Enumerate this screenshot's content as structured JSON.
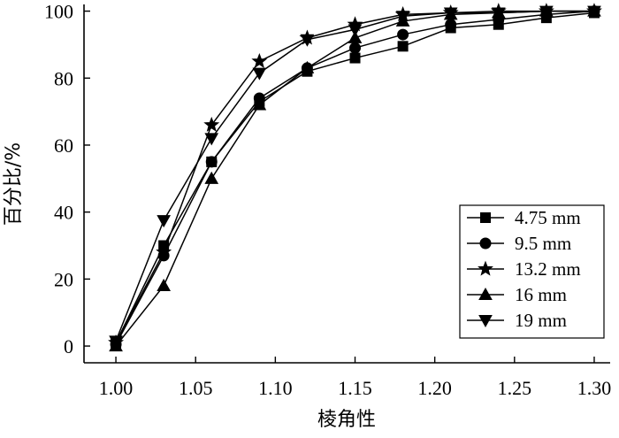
{
  "chart_data": {
    "type": "line",
    "xlabel": "棱角性",
    "ylabel": "百分比/%",
    "xlim": [
      0.98,
      1.31
    ],
    "ylim": [
      -5,
      102
    ],
    "x_ticks": [
      1.0,
      1.05,
      1.1,
      1.15,
      1.2,
      1.25,
      1.3
    ],
    "x_tick_labels": [
      "1.00",
      "1.05",
      "1.10",
      "1.15",
      "1.20",
      "1.25",
      "1.30"
    ],
    "y_ticks": [
      0,
      20,
      40,
      60,
      80,
      100
    ],
    "y_tick_labels": [
      "0",
      "20",
      "40",
      "60",
      "80",
      "100"
    ],
    "legend_position": "right",
    "series": [
      {
        "name": "4.75 mm",
        "marker": "square",
        "x": [
          1.0,
          1.03,
          1.06,
          1.09,
          1.12,
          1.15,
          1.18,
          1.21,
          1.24,
          1.27,
          1.3
        ],
        "values": [
          1,
          30,
          55,
          73,
          82,
          86,
          89.5,
          95,
          96,
          98,
          99.5
        ]
      },
      {
        "name": "9.5 mm",
        "marker": "circle",
        "x": [
          1.0,
          1.03,
          1.06,
          1.09,
          1.12,
          1.15,
          1.18,
          1.21,
          1.24,
          1.27,
          1.3
        ],
        "values": [
          0.5,
          27,
          55,
          74,
          83,
          89,
          93,
          96,
          97.5,
          99,
          100
        ]
      },
      {
        "name": "13.2 mm",
        "marker": "star",
        "x": [
          1.0,
          1.03,
          1.06,
          1.09,
          1.12,
          1.15,
          1.18,
          1.21,
          1.24,
          1.27,
          1.3
        ],
        "values": [
          1,
          28,
          66,
          85,
          92,
          96,
          99,
          99.5,
          100,
          100,
          100
        ]
      },
      {
        "name": "16 mm",
        "marker": "triangle-up",
        "x": [
          1.0,
          1.03,
          1.06,
          1.09,
          1.12,
          1.15,
          1.18,
          1.21,
          1.24,
          1.27,
          1.3
        ],
        "values": [
          0,
          18,
          50,
          72,
          83,
          92,
          97,
          99,
          99.5,
          100,
          100
        ]
      },
      {
        "name": "19 mm",
        "marker": "triangle-down",
        "x": [
          1.0,
          1.03,
          1.06,
          1.09,
          1.12,
          1.15,
          1.18,
          1.21,
          1.24,
          1.27,
          1.3
        ],
        "values": [
          1.5,
          37.5,
          62,
          81.5,
          91.5,
          94.5,
          98.5,
          99.5,
          99.5,
          100,
          100
        ]
      }
    ]
  }
}
